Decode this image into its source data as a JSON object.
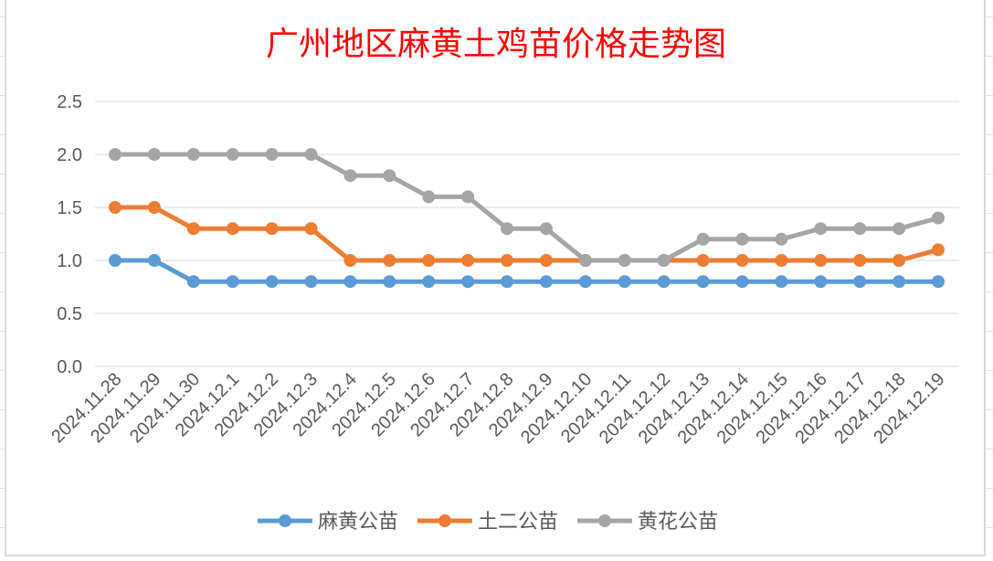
{
  "chart_data": {
    "type": "line",
    "title": "广州地区麻黄土鸡苗价格走势图",
    "xlabel": "",
    "ylabel": "",
    "ylim": [
      0,
      2.5
    ],
    "yticks": [
      "0.0",
      "0.5",
      "1.0",
      "1.5",
      "2.0",
      "2.5"
    ],
    "grid": true,
    "legend_position": "bottom",
    "categories": [
      "2024.11.28",
      "2024.11.29",
      "2024.11.30",
      "2024.12.1",
      "2024.12.2",
      "2024.12.3",
      "2024.12.4",
      "2024.12.5",
      "2024.12.6",
      "2024.12.7",
      "2024.12.8",
      "2024.12.9",
      "2024.12.10",
      "2024.12.11",
      "2024.12.12",
      "2024.12.13",
      "2024.12.14",
      "2024.12.15",
      "2024.12.16",
      "2024.12.17",
      "2024.12.18",
      "2024.12.19"
    ],
    "series": [
      {
        "name": "麻黄公苗",
        "color": "#5b9bd5",
        "values": [
          1.0,
          1.0,
          0.8,
          0.8,
          0.8,
          0.8,
          0.8,
          0.8,
          0.8,
          0.8,
          0.8,
          0.8,
          0.8,
          0.8,
          0.8,
          0.8,
          0.8,
          0.8,
          0.8,
          0.8,
          0.8,
          0.8
        ]
      },
      {
        "name": "土二公苗",
        "color": "#ed7d31",
        "values": [
          1.5,
          1.5,
          1.3,
          1.3,
          1.3,
          1.3,
          1.0,
          1.0,
          1.0,
          1.0,
          1.0,
          1.0,
          1.0,
          1.0,
          1.0,
          1.0,
          1.0,
          1.0,
          1.0,
          1.0,
          1.0,
          1.1
        ]
      },
      {
        "name": "黄花公苗",
        "color": "#a5a5a5",
        "values": [
          2.0,
          2.0,
          2.0,
          2.0,
          2.0,
          2.0,
          1.8,
          1.8,
          1.6,
          1.6,
          1.3,
          1.3,
          1.0,
          1.0,
          1.0,
          1.2,
          1.2,
          1.2,
          1.3,
          1.3,
          1.3,
          1.4
        ]
      }
    ],
    "title_color": "#ff0000"
  }
}
